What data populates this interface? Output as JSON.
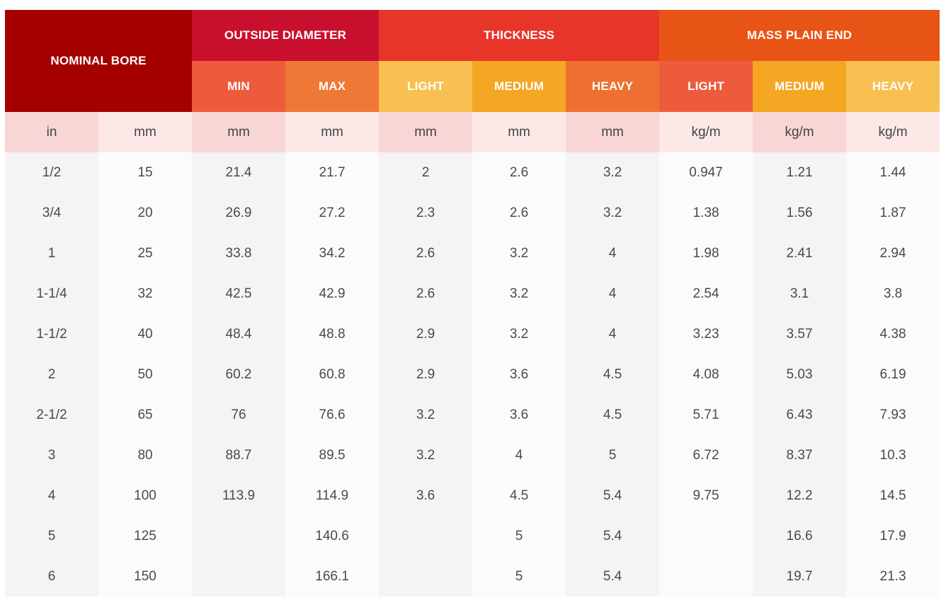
{
  "colors": {
    "nominal_bore": "#a50000",
    "outside_diameter": "#c8102e",
    "thickness": "#e8352a",
    "mass_plain_end": "#e85416",
    "min": "#ee5a3c",
    "max": "#f07836",
    "light_thickness": "#f8c050",
    "medium_thickness": "#f5a623",
    "heavy_thickness": "#ee7031",
    "light_mass": "#ee5a3c",
    "medium_mass": "#f5a623",
    "heavy_mass": "#f8c050"
  },
  "header": {
    "nominal_bore": "NOMINAL BORE",
    "outside_diameter": "OUTSIDE DIAMETER",
    "thickness": "THICKNESS",
    "mass_plain_end": "MASS PLAIN END",
    "sub": [
      "MIN",
      "MAX",
      "LIGHT",
      "MEDIUM",
      "HEAVY",
      "LIGHT",
      "MEDIUM",
      "HEAVY"
    ]
  },
  "units": [
    "in",
    "mm",
    "mm",
    "mm",
    "mm",
    "mm",
    "mm",
    "kg/m",
    "kg/m",
    "kg/m"
  ],
  "rows": [
    [
      "1/2",
      "15",
      "21.4",
      "21.7",
      "2",
      "2.6",
      "3.2",
      "0.947",
      "1.21",
      "1.44"
    ],
    [
      "3/4",
      "20",
      "26.9",
      "27.2",
      "2.3",
      "2.6",
      "3.2",
      "1.38",
      "1.56",
      "1.87"
    ],
    [
      "1",
      "25",
      "33.8",
      "34.2",
      "2.6",
      "3.2",
      "4",
      "1.98",
      "2.41",
      "2.94"
    ],
    [
      "1-1/4",
      "32",
      "42.5",
      "42.9",
      "2.6",
      "3.2",
      "4",
      "2.54",
      "3.1",
      "3.8"
    ],
    [
      "1-1/2",
      "40",
      "48.4",
      "48.8",
      "2.9",
      "3.2",
      "4",
      "3.23",
      "3.57",
      "4.38"
    ],
    [
      "2",
      "50",
      "60.2",
      "60.8",
      "2.9",
      "3.6",
      "4.5",
      "4.08",
      "5.03",
      "6.19"
    ],
    [
      "2-1/2",
      "65",
      "76",
      "76.6",
      "3.2",
      "3.6",
      "4.5",
      "5.71",
      "6.43",
      "7.93"
    ],
    [
      "3",
      "80",
      "88.7",
      "89.5",
      "3.2",
      "4",
      "5",
      "6.72",
      "8.37",
      "10.3"
    ],
    [
      "4",
      "100",
      "113.9",
      "114.9",
      "3.6",
      "4.5",
      "5.4",
      "9.75",
      "12.2",
      "14.5"
    ],
    [
      "5",
      "125",
      "",
      "140.6",
      "",
      "5",
      "5.4",
      "",
      "16.6",
      "17.9"
    ],
    [
      "6",
      "150",
      "",
      "166.1",
      "",
      "5",
      "5.4",
      "",
      "19.7",
      "21.3"
    ]
  ]
}
